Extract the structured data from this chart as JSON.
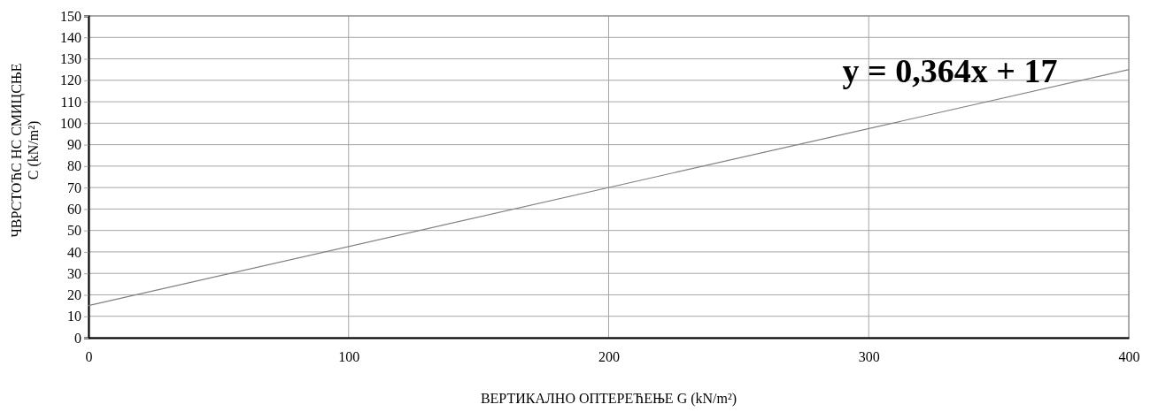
{
  "chart_data": {
    "type": "line",
    "xlabel": "ВЕРТИКАЛНО ОПТЕРЕЋЕЊЕ  G (kN/m²)",
    "ylabel": "ЧВРСТОЋС НС СМИЦСЊЕ\nC (kN/m²)",
    "x": [
      0,
      400
    ],
    "series": [
      {
        "color": "#808080",
        "values": [
          15,
          125
        ]
      }
    ],
    "xlim": [
      0,
      400
    ],
    "xticks": [
      0,
      100,
      200,
      300,
      400
    ],
    "ylim": [
      0,
      150
    ],
    "yticks": [
      0,
      10,
      20,
      30,
      40,
      50,
      60,
      70,
      80,
      90,
      100,
      110,
      120,
      130,
      140,
      150
    ],
    "grid": true,
    "marker": "none",
    "line_style": "solid",
    "annotations": [
      "y = 0,364x + 17"
    ]
  }
}
